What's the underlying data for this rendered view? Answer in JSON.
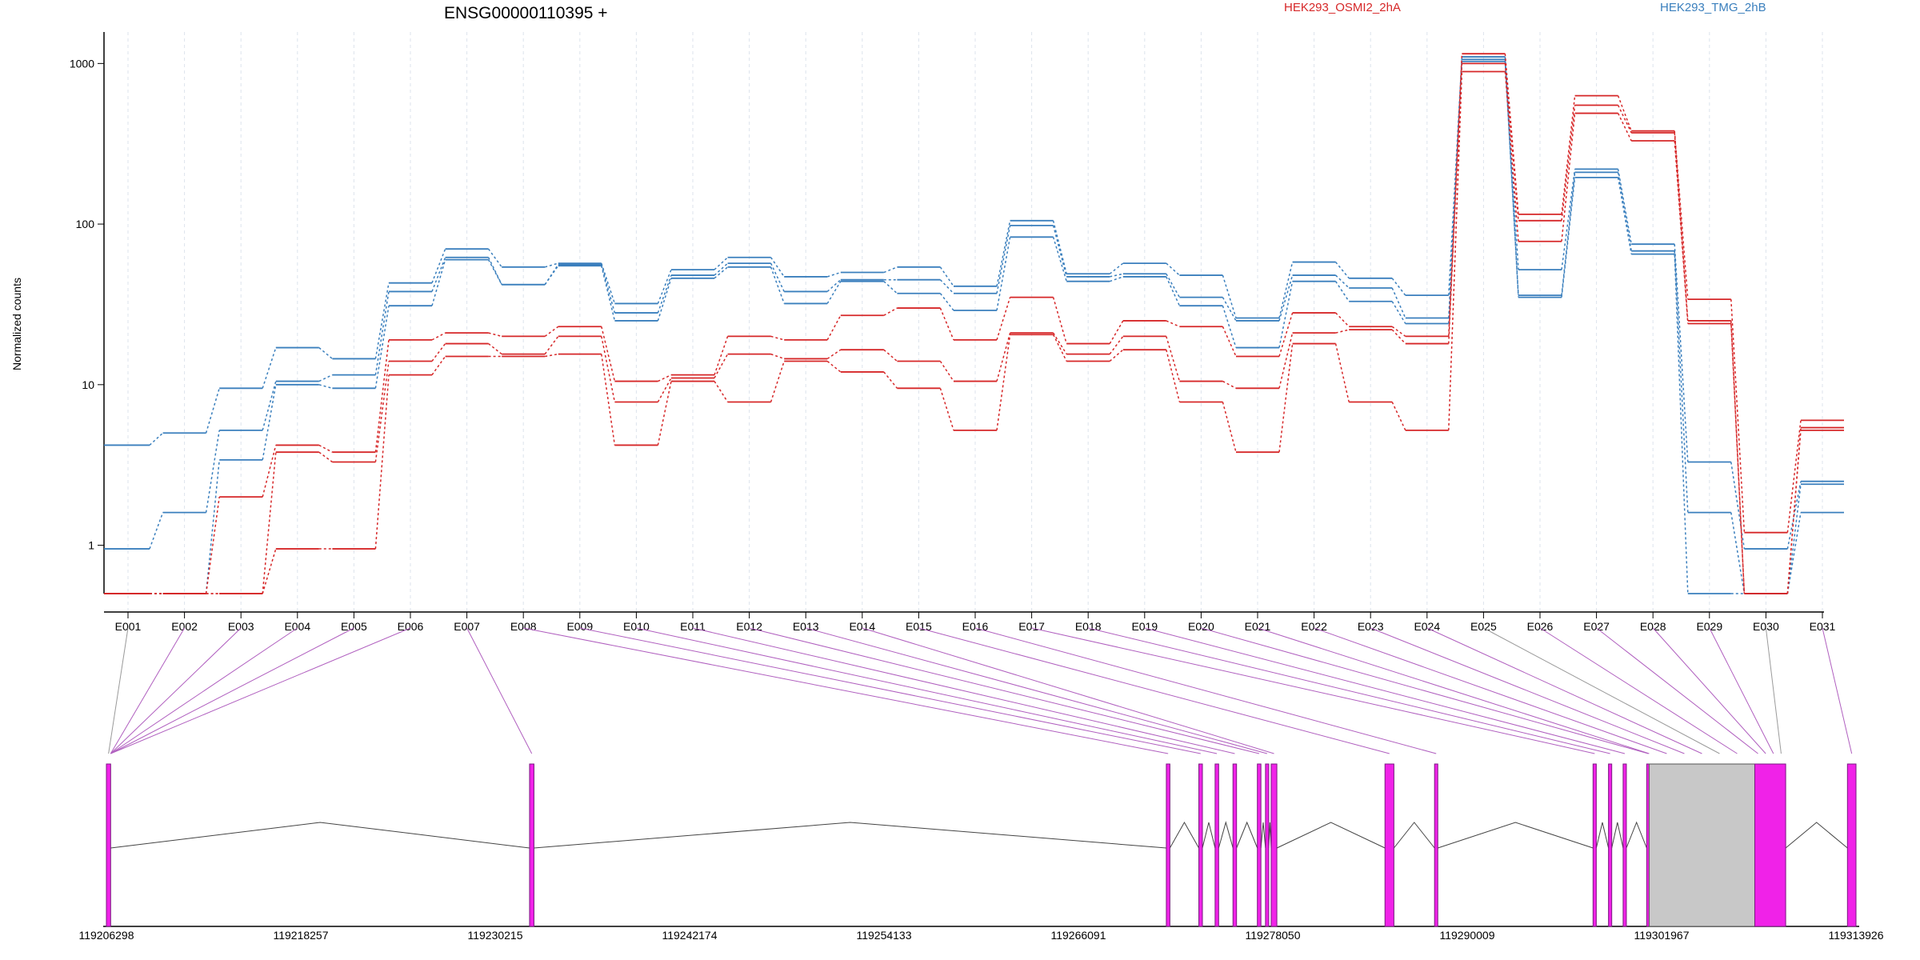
{
  "chart_data": {
    "type": "line",
    "title": "ENSG00000110395 +",
    "ylabel": "Normalized counts",
    "yscale": "log",
    "ylim": [
      0.5,
      1500
    ],
    "yticks": [
      "1",
      "10",
      "100",
      "1000"
    ],
    "categories": [
      "E001",
      "E002",
      "E003",
      "E004",
      "E005",
      "E006",
      "E007",
      "E008",
      "E009",
      "E010",
      "E011",
      "E012",
      "E013",
      "E014",
      "E015",
      "E016",
      "E017",
      "E018",
      "E019",
      "E020",
      "E021",
      "E022",
      "E023",
      "E024",
      "E025",
      "E026",
      "E027",
      "E028",
      "E029",
      "E030",
      "E031"
    ],
    "legend": [
      {
        "label": "HEK293_OSMI2_2hA",
        "color": "#d62728"
      },
      {
        "label": "HEK293_TMG_2hB",
        "color": "#3a7fbd"
      }
    ],
    "series": [
      {
        "group": "HEK293_TMG_2hB",
        "color": "#3a7fbd",
        "values": [
          4.2,
          5.0,
          9.5,
          17,
          14.5,
          43,
          70,
          54,
          57,
          32,
          52,
          62,
          47,
          50,
          54,
          41,
          105,
          49,
          57,
          48,
          26,
          58,
          46,
          36,
          1100,
          52,
          220,
          75,
          3.3,
          0.95,
          2.5
        ]
      },
      {
        "group": "HEK293_TMG_2hB",
        "color": "#3a7fbd",
        "values": [
          0.95,
          1.6,
          5.2,
          10.5,
          11.5,
          38,
          62,
          42,
          56,
          28,
          48,
          57,
          38,
          45,
          45,
          37,
          98,
          47,
          49,
          35,
          25,
          48,
          40,
          26,
          1060,
          36,
          210,
          68,
          1.6,
          0.5,
          2.4
        ]
      },
      {
        "group": "HEK293_TMG_2hB",
        "color": "#3a7fbd",
        "values": [
          0.5,
          0.5,
          3.4,
          10,
          9.5,
          31,
          60,
          42,
          55,
          25,
          46,
          54,
          32,
          44,
          37,
          29,
          83,
          44,
          47,
          31,
          17,
          44,
          33,
          24,
          1030,
          35,
          195,
          65,
          0.5,
          0.5,
          1.6
        ]
      },
      {
        "group": "HEK293_OSMI2_2hA",
        "color": "#d62728",
        "values": [
          0.5,
          0.5,
          2.0,
          4.2,
          3.8,
          19,
          21,
          20,
          23,
          10.5,
          11.5,
          20,
          19,
          27,
          30,
          19,
          35,
          18,
          25,
          23,
          15,
          28,
          23,
          20,
          1150,
          115,
          630,
          380,
          34,
          1.2,
          6.0
        ]
      },
      {
        "group": "HEK293_OSMI2_2hA",
        "color": "#d62728",
        "values": [
          0.5,
          0.5,
          0.5,
          3.8,
          3.3,
          14,
          18,
          15.5,
          20,
          7.8,
          11,
          15.5,
          14.5,
          16.5,
          14,
          10.5,
          21,
          15.5,
          20,
          10.5,
          9.5,
          21,
          22,
          18,
          1000,
          105,
          550,
          370,
          25,
          0.5,
          5.4
        ]
      },
      {
        "group": "HEK293_OSMI2_2hA",
        "color": "#d62728",
        "values": [
          0.5,
          0.5,
          0.5,
          0.95,
          0.95,
          11.5,
          15,
          15,
          15.5,
          4.2,
          10.5,
          7.8,
          14,
          12,
          9.5,
          5.2,
          20.5,
          14,
          16.5,
          7.8,
          3.8,
          18,
          7.8,
          5.2,
          890,
          78,
          490,
          330,
          24,
          0.5,
          5.2
        ]
      }
    ],
    "gene_model": {
      "coordinates": [
        "119206298",
        "119218257",
        "119230215",
        "119242174",
        "119254133",
        "119266091",
        "119278050",
        "119290009",
        "119301967",
        "119313926"
      ],
      "range": [
        119206298,
        119313926
      ],
      "exons": [
        [
          119206298,
          119206560,
          "#f022e8"
        ],
        [
          119232330,
          119232600,
          "#f022e8"
        ],
        [
          119271500,
          119271720,
          "#f022e8"
        ],
        [
          119273500,
          119273720,
          "#f022e8"
        ],
        [
          119274500,
          119274720,
          "#f022e8"
        ],
        [
          119275600,
          119275820,
          "#f022e8"
        ],
        [
          119277100,
          119277320,
          "#f022e8"
        ],
        [
          119277600,
          119277800,
          "#f022e8"
        ],
        [
          119277950,
          119278300,
          "#f022e8"
        ],
        [
          119284950,
          119285500,
          "#f022e8"
        ],
        [
          119288000,
          119288200,
          "#f022e8"
        ],
        [
          119297750,
          119297950,
          "#f022e8"
        ],
        [
          119298700,
          119298900,
          "#f022e8"
        ],
        [
          119299600,
          119299800,
          "#f022e8"
        ],
        [
          119301050,
          119301200,
          "#f022e8"
        ],
        [
          119301200,
          119307700,
          "#c8c8c8"
        ],
        [
          119307700,
          119309600,
          "#f022e8"
        ],
        [
          119313400,
          119313926,
          "#f022e8"
        ]
      ]
    }
  }
}
